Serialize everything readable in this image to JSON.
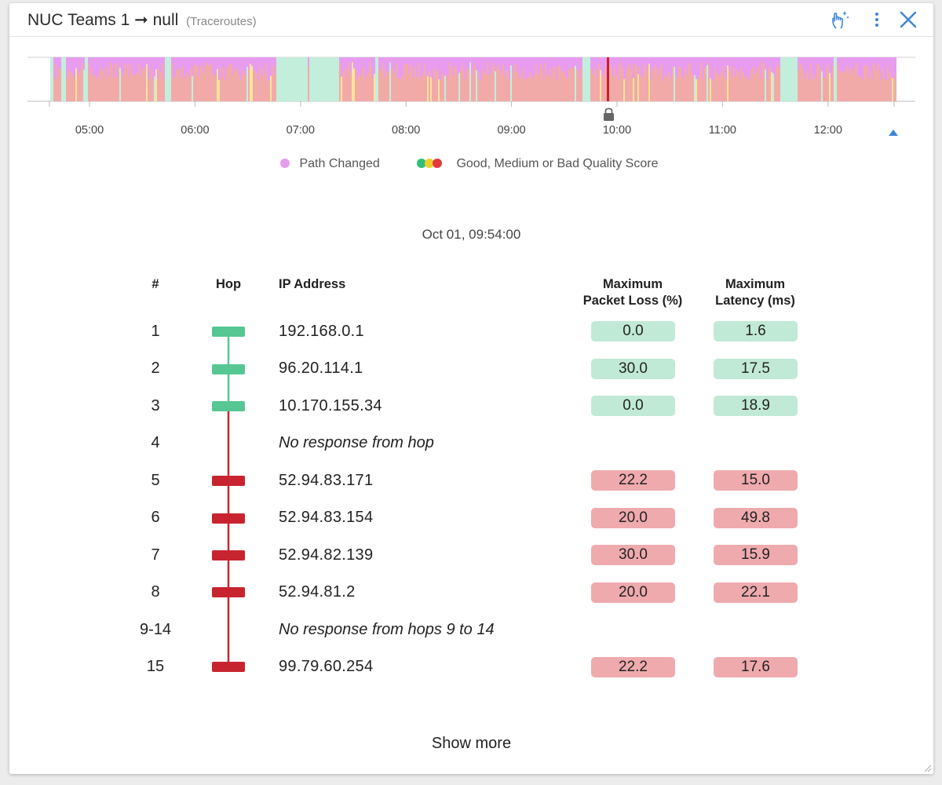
{
  "header": {
    "title": "NUC Teams 1 ➞ null",
    "subtitle": "(Traceroutes)",
    "icons": [
      "touch-sparkle-icon",
      "more-vert-icon",
      "close-icon"
    ]
  },
  "timeline": {
    "tick_labels": [
      "05:00",
      "06:00",
      "07:00",
      "08:00",
      "09:00",
      "10:00",
      "11:00",
      "12:00"
    ],
    "colors": {
      "path_changed": "#e89cf0",
      "good": "#c3eedb",
      "medium": "#fde39a",
      "bad": "#f2aaa9",
      "severe": "#cc1f2b"
    }
  },
  "legend": {
    "path_changed": "Path Changed",
    "quality": "Good, Medium or Bad Quality Score"
  },
  "selected_time": "Oct 01, 09:54:00",
  "table": {
    "headers": {
      "num": "#",
      "hop": "Hop",
      "ip": "IP Address",
      "loss_line1": "Maximum",
      "loss_line2": "Packet Loss (%)",
      "latency_line1": "Maximum",
      "latency_line2": "Latency (ms)"
    },
    "rows": [
      {
        "num": "1",
        "ip": "192.168.0.1",
        "loss": "0.0",
        "latency": "1.6",
        "status": "good"
      },
      {
        "num": "2",
        "ip": "96.20.114.1",
        "loss": "30.0",
        "latency": "17.5",
        "status": "good"
      },
      {
        "num": "3",
        "ip": "10.170.155.34",
        "loss": "0.0",
        "latency": "18.9",
        "status": "good"
      },
      {
        "num": "4",
        "ip": "No response from hop",
        "loss": "",
        "latency": "",
        "status": "none"
      },
      {
        "num": "5",
        "ip": "52.94.83.171",
        "loss": "22.2",
        "latency": "15.0",
        "status": "bad"
      },
      {
        "num": "6",
        "ip": "52.94.83.154",
        "loss": "20.0",
        "latency": "49.8",
        "status": "bad"
      },
      {
        "num": "7",
        "ip": "52.94.82.139",
        "loss": "30.0",
        "latency": "15.9",
        "status": "bad"
      },
      {
        "num": "8",
        "ip": "52.94.81.2",
        "loss": "20.0",
        "latency": "22.1",
        "status": "bad"
      },
      {
        "num": "9-14",
        "ip": "No response from hops 9 to 14",
        "loss": "",
        "latency": "",
        "status": "none"
      },
      {
        "num": "15",
        "ip": "99.79.60.254",
        "loss": "22.2",
        "latency": "17.6",
        "status": "bad"
      }
    ]
  },
  "show_more": "Show more"
}
